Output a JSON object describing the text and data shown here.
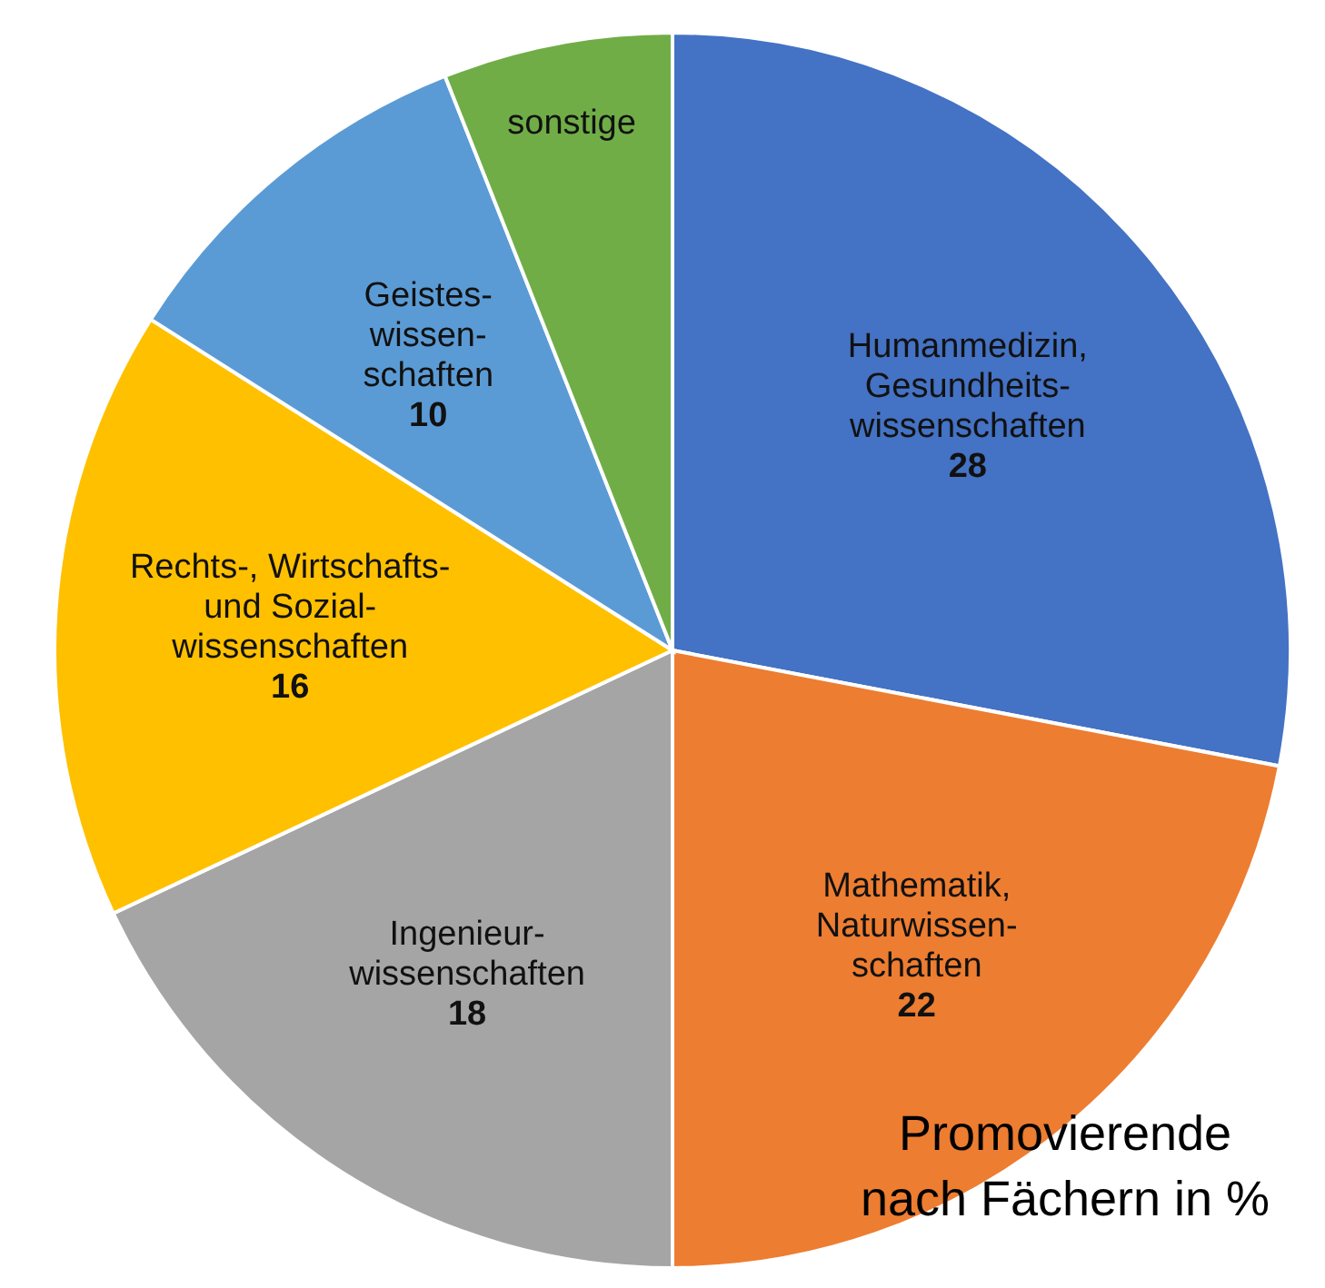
{
  "chart_data": {
    "type": "pie",
    "title": "Promovierende nach Fächern in %",
    "categories": [
      "Humanmedizin,\nGesundheits-\nwissenschaften",
      "Mathematik,\nNaturwissen-\nschaften",
      "Ingenieur-\nwissenschaften",
      "Rechts-, Wirtschafts-\nund Sozial-\nwissenschaften",
      "Geistes-\nwissen-\nschaften",
      "sonstige"
    ],
    "values": [
      28,
      22,
      18,
      16,
      10,
      6
    ],
    "value_labels": [
      "28",
      "22",
      "18",
      "16",
      "10",
      null
    ],
    "colors": [
      "#4472c4",
      "#ed7d31",
      "#a5a5a5",
      "#ffc000",
      "#5b9bd5",
      "#70ad47"
    ]
  }
}
